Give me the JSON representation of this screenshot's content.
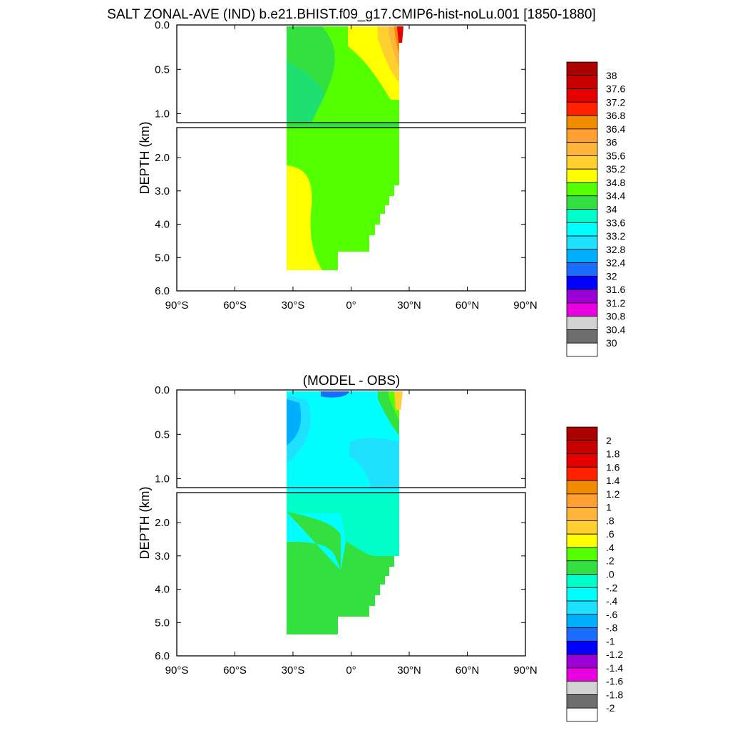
{
  "title": "SALT ZONAL-AVE (IND) b.e21.BHIST.f09_g17.CMIP6-hist-noLu.001 [1850-1880]",
  "chart_data": [
    {
      "type": "heatmap",
      "name": "salt",
      "title": "",
      "xlabel": "",
      "ylabel": "DEPTH (km)",
      "x_range": [
        -90,
        90
      ],
      "x_ticks": [
        "90°S",
        "60°S",
        "30°S",
        "0°",
        "30°N",
        "60°N",
        "90°N"
      ],
      "y_range_km": [
        0,
        6
      ],
      "y_ticks": [
        "0.0",
        "0.5",
        "1.0",
        "2.0",
        "3.0",
        "4.0",
        "5.0",
        "6.0"
      ],
      "data_extent": {
        "lat": [
          -34,
          25
        ],
        "max_depth_km": 5.4
      },
      "levels": [
        "38",
        "37.6",
        "37.2",
        "36.8",
        "36.4",
        "36",
        "35.6",
        "35.2",
        "34.8",
        "34.4",
        "34",
        "33.6",
        "33.2",
        "32.8",
        "32.4",
        "32",
        "31.6",
        "31.2",
        "30.8",
        "30.4",
        "30"
      ],
      "colors": [
        "#ab0000",
        "#c80000",
        "#e40000",
        "#ff2000",
        "#f08c00",
        "#ffa030",
        "#ffb43c",
        "#ffd030",
        "#ffff00",
        "#54ff00",
        "#33e040",
        "#00ffc8",
        "#00ffff",
        "#1ee0ff",
        "#00b0ff",
        "#1a6cff",
        "#0000ff",
        "#9b00d4",
        "#e800e0",
        "#d3d3d3",
        "#6e6e6e",
        "#ffffff"
      ]
    },
    {
      "type": "heatmap",
      "name": "diff",
      "title": "(MODEL - OBS)",
      "xlabel": "",
      "ylabel": "DEPTH (km)",
      "x_range": [
        -90,
        90
      ],
      "x_ticks": [
        "90°S",
        "60°S",
        "30°S",
        "0°",
        "30°N",
        "60°N",
        "90°N"
      ],
      "y_range_km": [
        0,
        6
      ],
      "y_ticks": [
        "0.0",
        "0.5",
        "1.0",
        "2.0",
        "3.0",
        "4.0",
        "5.0",
        "6.0"
      ],
      "data_extent": {
        "lat": [
          -34,
          25
        ],
        "max_depth_km": 5.4
      },
      "levels": [
        "2",
        "1.8",
        "1.6",
        "1.4",
        "1.2",
        "1",
        ".8",
        ".6",
        ".4",
        ".2",
        ".0",
        "-.2",
        "-.4",
        "-.6",
        "-.8",
        "-1",
        "-1.2",
        "-1.4",
        "-1.6",
        "-1.8",
        "-2"
      ],
      "colors": [
        "#ab0000",
        "#c80000",
        "#e40000",
        "#ff2000",
        "#f08c00",
        "#ffa030",
        "#ffb43c",
        "#ffd030",
        "#ffff00",
        "#54ff00",
        "#33e040",
        "#00ffc8",
        "#00ffff",
        "#1ee0ff",
        "#00b0ff",
        "#1a6cff",
        "#0000ff",
        "#9b00d4",
        "#e800e0",
        "#d3d3d3",
        "#6e6e6e",
        "#ffffff"
      ]
    }
  ]
}
